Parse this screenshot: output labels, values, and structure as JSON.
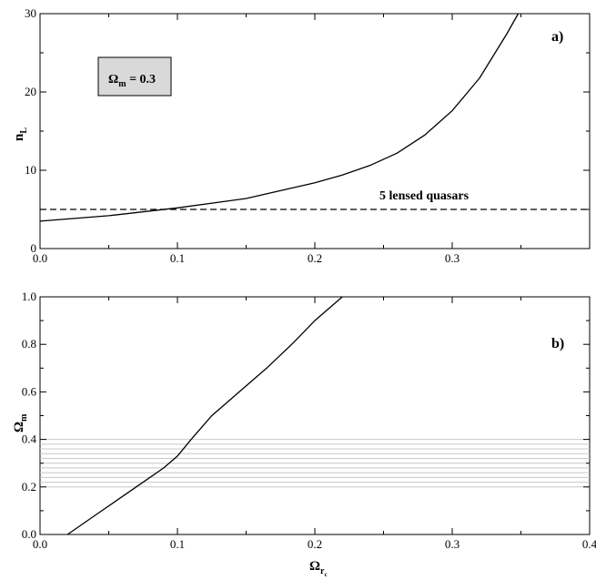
{
  "chart_data": [
    {
      "panel": "a)",
      "type": "line",
      "xlim": [
        0.0,
        0.4
      ],
      "ylim": [
        0,
        30
      ],
      "x_ticks": [
        "0.0",
        "0.1",
        "0.2",
        "0.3"
      ],
      "y_ticks": [
        "0",
        "10",
        "20",
        "30"
      ],
      "ylabel": {
        "main": "n",
        "sub": "L"
      },
      "inset_box": {
        "main": "Ω",
        "sub": "m",
        "rest": " = 0.3",
        "fill": "#d9d9d9"
      },
      "hline": {
        "y": 5,
        "label": "5 lensed quasars",
        "style": "dashed"
      },
      "series": [
        {
          "style": "solid",
          "points": [
            [
              0.0,
              3.5
            ],
            [
              0.05,
              4.2
            ],
            [
              0.1,
              5.2
            ],
            [
              0.15,
              6.4
            ],
            [
              0.2,
              8.4
            ],
            [
              0.22,
              9.4
            ],
            [
              0.24,
              10.6
            ],
            [
              0.26,
              12.2
            ],
            [
              0.28,
              14.5
            ],
            [
              0.3,
              17.6
            ],
            [
              0.32,
              21.8
            ],
            [
              0.34,
              27.5
            ],
            [
              0.348,
              30.0
            ]
          ]
        }
      ]
    },
    {
      "panel": "b)",
      "type": "line",
      "xlim": [
        0.0,
        0.4
      ],
      "ylim": [
        0.0,
        1.0
      ],
      "x_ticks": [
        "0.0",
        "0.1",
        "0.2",
        "0.3",
        "0.4"
      ],
      "y_ticks": [
        "0.0",
        "0.2",
        "0.4",
        "0.6",
        "0.8",
        "1.0"
      ],
      "ylabel": {
        "main": "Ω",
        "sub": "m"
      },
      "xlabel": {
        "main": "Ω",
        "sub": "r",
        "subsub": "c"
      },
      "band": {
        "y": [
          0.2,
          0.4
        ],
        "lines": 11,
        "color": "#c8c8c8"
      },
      "series": [
        {
          "style": "solid",
          "points": [
            [
              0.02,
              0.0
            ],
            [
              0.045,
              0.1
            ],
            [
              0.07,
              0.2
            ],
            [
              0.09,
              0.28
            ],
            [
              0.1,
              0.33
            ],
            [
              0.11,
              0.4
            ],
            [
              0.125,
              0.5
            ],
            [
              0.145,
              0.6
            ],
            [
              0.165,
              0.7
            ],
            [
              0.185,
              0.81
            ],
            [
              0.2,
              0.9
            ],
            [
              0.22,
              1.0
            ]
          ]
        }
      ]
    }
  ]
}
